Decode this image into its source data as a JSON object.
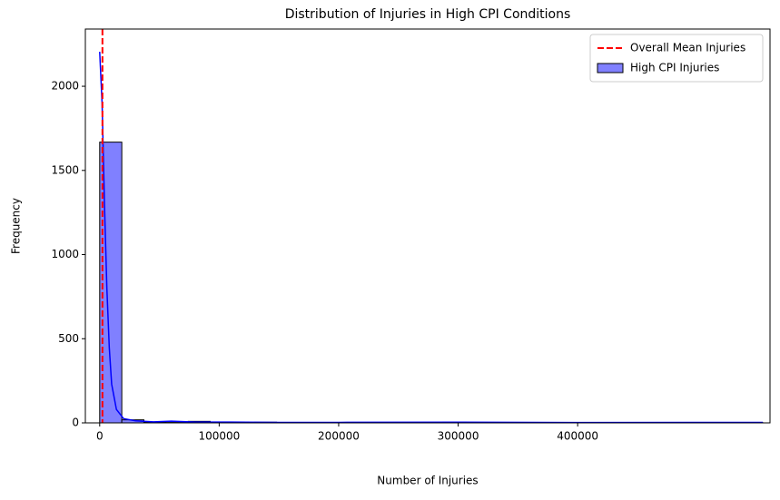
{
  "chart_data": {
    "type": "histogram",
    "title": "Distribution of Injuries in High CPI Conditions",
    "x_label": "Number of Injuries",
    "y_label": "Frequency",
    "bins": [
      0,
      18500,
      37000,
      55500,
      74000,
      92500,
      111000,
      129500,
      148000,
      166500,
      185000,
      203500,
      222000,
      240500,
      259000,
      277500,
      296000,
      314500,
      333000,
      351500,
      370000,
      388500,
      407000,
      425500,
      444000,
      462500,
      481000,
      499500,
      518000,
      536500,
      555000
    ],
    "series": [
      {
        "name": "High CPI Injuries",
        "color": "#8080ff",
        "edgecolor": "#000000",
        "values": [
          1668,
          18,
          4,
          6,
          9,
          3,
          2,
          4,
          2,
          1,
          2,
          1,
          1,
          1,
          0,
          1,
          0,
          1,
          1,
          0,
          0,
          1,
          0,
          0,
          1,
          0,
          0,
          0,
          0,
          1
        ]
      }
    ],
    "kde": {
      "color": "#0000ff",
      "x": [
        0,
        2000,
        4000,
        6000,
        8000,
        10000,
        14000,
        20000,
        30000,
        45000,
        60000,
        80000,
        100000,
        150000,
        200000,
        300000,
        400000,
        555000
      ],
      "values": [
        2205,
        1900,
        1300,
        800,
        450,
        230,
        80,
        25,
        12,
        6,
        10,
        5,
        5,
        3,
        3,
        4,
        2,
        3
      ]
    },
    "mean_line": {
      "name": "Overall Mean Injuries",
      "value": 2300,
      "color": "#ff0000"
    },
    "xlim": [
      -12000,
      561000
    ],
    "ylim": [
      0,
      2340
    ],
    "xticks": [
      0,
      100000,
      200000,
      300000,
      400000
    ],
    "yticks": [
      0,
      500,
      1000,
      1500,
      2000
    ],
    "legend": "upper-right"
  }
}
